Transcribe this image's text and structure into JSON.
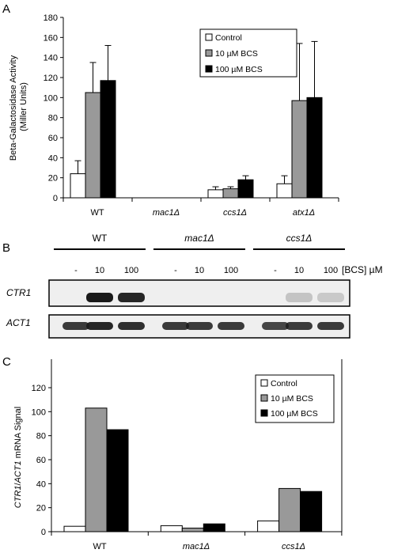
{
  "panels": {
    "a": "A",
    "b": "B",
    "c": "C"
  },
  "legend": {
    "control": "Control",
    "bcs10": "10 µM BCS",
    "bcs100": "100 µM BCS"
  },
  "colors": {
    "control": "#ffffff",
    "bcs10": "#999999",
    "bcs100": "#000000",
    "blot_bg": "#efefef",
    "band": "#1a1a1a"
  },
  "chart_data": [
    {
      "type": "bar",
      "panel": "A",
      "ylabel_line1": "Beta-Galactosidase Activity",
      "ylabel_line2": "(Miller Units)",
      "ylim": [
        0,
        180
      ],
      "yticks": [
        0,
        20,
        40,
        60,
        80,
        100,
        120,
        140,
        160,
        180
      ],
      "grid": false,
      "legend_position": "top-right",
      "categories": [
        "WT",
        "mac1Δ",
        "ccs1Δ",
        "atx1Δ"
      ],
      "series": [
        {
          "name": "Control",
          "values": [
            24,
            0,
            8,
            14
          ],
          "errors": [
            13,
            0,
            3,
            8
          ]
        },
        {
          "name": "10 µM BCS",
          "values": [
            105,
            0,
            9,
            97
          ],
          "errors": [
            30,
            0,
            2,
            57
          ]
        },
        {
          "name": "100 µM BCS",
          "values": [
            117,
            0,
            18,
            100
          ],
          "errors": [
            35,
            0,
            4,
            56
          ]
        }
      ]
    },
    {
      "type": "bar",
      "panel": "C",
      "ylabel_italic1": "CTR1",
      "ylabel_slash": "/",
      "ylabel_italic2": "ACT1",
      "ylabel_rest": " mRNA Signal",
      "ylim": [
        0,
        120
      ],
      "yticks": [
        0,
        20,
        40,
        60,
        80,
        100,
        120
      ],
      "grid": false,
      "legend_position": "top-right",
      "categories": [
        "WT",
        "mac1Δ",
        "ccs1Δ"
      ],
      "series": [
        {
          "name": "Control",
          "values": [
            4.5,
            5,
            9
          ]
        },
        {
          "name": "10 µM BCS",
          "values": [
            103,
            3,
            36
          ]
        },
        {
          "name": "100 µM BCS",
          "values": [
            85,
            6.5,
            33.5
          ]
        }
      ]
    }
  ],
  "blot": {
    "groups": [
      "WT",
      "mac1Δ",
      "ccs1Δ"
    ],
    "lane_labels": [
      "-",
      "10",
      "100",
      "-",
      "10",
      "100",
      "-",
      "10",
      "100"
    ],
    "unit_label": "[BCS] µM",
    "rows": [
      {
        "label": "CTR1",
        "intensity": [
          0.0,
          1.0,
          0.95,
          0.0,
          0.0,
          0.0,
          0.0,
          0.2,
          0.18
        ]
      },
      {
        "label": "ACT1",
        "intensity": [
          0.85,
          0.95,
          0.9,
          0.85,
          0.85,
          0.85,
          0.8,
          0.85,
          0.85
        ]
      }
    ]
  }
}
